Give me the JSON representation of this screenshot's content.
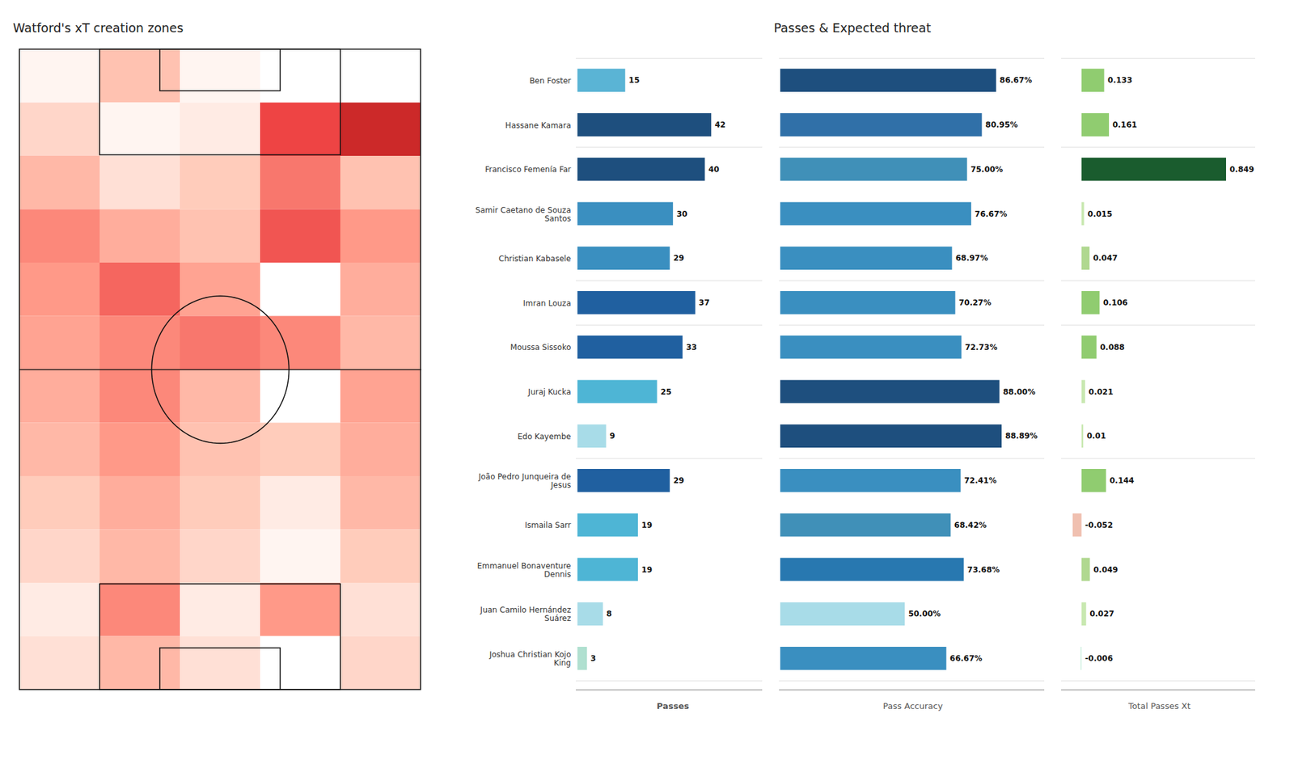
{
  "chart_data": [
    {
      "type": "heatmap",
      "title": "Watford's xT creation zones",
      "values": [
        [
          0.05,
          0.3,
          0.05,
          0.0,
          0.0
        ],
        [
          0.2,
          0.05,
          0.1,
          0.75,
          0.85
        ],
        [
          0.35,
          0.15,
          0.25,
          0.6,
          0.3
        ],
        [
          0.55,
          0.4,
          0.3,
          0.7,
          0.5
        ],
        [
          0.5,
          0.65,
          0.45,
          0.0,
          0.4
        ],
        [
          0.45,
          0.55,
          0.6,
          0.55,
          0.35
        ],
        [
          0.4,
          0.55,
          0.35,
          0.0,
          0.45
        ],
        [
          0.35,
          0.5,
          0.3,
          0.25,
          0.4
        ],
        [
          0.25,
          0.4,
          0.25,
          0.1,
          0.35
        ],
        [
          0.2,
          0.35,
          0.2,
          0.05,
          0.25
        ],
        [
          0.1,
          0.55,
          0.1,
          0.5,
          0.15
        ],
        [
          0.15,
          0.35,
          0.15,
          0.0,
          0.2
        ]
      ],
      "zlim": [
        0,
        1
      ],
      "tick_labels": false
    },
    {
      "type": "bar",
      "orientation": "horizontal",
      "xlabel": "Passes",
      "categories": [
        "Ben Foster",
        "Hassane Kamara",
        "Francisco Femenía Far",
        "Samir Caetano de Souza\nSantos",
        "Christian Kabasele",
        "Imran Louza",
        "Moussa Sissoko",
        "Juraj Kucka",
        "Edo Kayembe",
        "João Pedro Junqueira de\nJesus",
        "Ismaila Sarr",
        "Emmanuel Bonaventure\nDennis",
        "Juan Camilo Hernández\nSuárez",
        "Joshua Christian Kojo\nKing"
      ],
      "values": [
        15,
        42,
        40,
        30,
        29,
        37,
        33,
        25,
        9,
        29,
        19,
        19,
        8,
        3
      ],
      "colors": [
        "#5ab4d5",
        "#1e4f7e",
        "#1e4f7e",
        "#3a8fc0",
        "#3a8fc0",
        "#2060a0",
        "#2060a0",
        "#4eb5d5",
        "#a8dce8",
        "#2060a0",
        "#4eb5d5",
        "#4eb5d5",
        "#a8dce8",
        "#b0e0d0"
      ],
      "xlim": [
        -0.5,
        58
      ],
      "data_labels": true,
      "tick_labels": "y",
      "separators_after": [
        1,
        4,
        5,
        8
      ]
    },
    {
      "type": "bar",
      "orientation": "horizontal",
      "title": "Passes & Expected threat",
      "xlabel": "Pass Accuracy",
      "categories": [
        "Ben Foster",
        "Hassane Kamara",
        "Francisco Femenía Far",
        "Samir Caetano de Souza\nSantos",
        "Christian Kabasele",
        "Imran Louza",
        "Moussa Sissoko",
        "Juraj Kucka",
        "Edo Kayembe",
        "João Pedro Junqueira de\nJesus",
        "Ismaila Sarr",
        "Emmanuel Bonaventure\nDennis",
        "Juan Camilo Hernández\nSuárez",
        "Joshua Christian Kojo\nKing"
      ],
      "values": [
        86.67,
        80.95,
        75.0,
        76.67,
        68.97,
        70.27,
        72.73,
        88.0,
        88.89,
        72.41,
        68.42,
        73.68,
        50.0,
        66.67
      ],
      "value_labels": [
        "86.67%",
        "80.95%",
        "75.00%",
        "76.67%",
        "68.97%",
        "70.27%",
        "72.73%",
        "88.00%",
        "88.89%",
        "72.41%",
        "68.42%",
        "73.68%",
        "50.00%",
        "66.67%"
      ],
      "colors": [
        "#1e4f7e",
        "#3070a8",
        "#4090b8",
        "#3a8fc0",
        "#3a8fc0",
        "#3a8fc0",
        "#3a8fc0",
        "#1e4f7e",
        "#1e4f7e",
        "#3a8fc0",
        "#4090b8",
        "#2878b0",
        "#a8dce8",
        "#3a8fc0"
      ],
      "xlim": [
        -0.5,
        106
      ],
      "data_labels": true,
      "tick_labels": false,
      "separators_after": [
        1,
        4,
        5,
        8
      ]
    },
    {
      "type": "bar",
      "orientation": "horizontal",
      "xlabel": "Total Passes Xt",
      "categories": [
        "Ben Foster",
        "Hassane Kamara",
        "Francisco Femenía Far",
        "Samir Caetano de Souza\nSantos",
        "Christian Kabasele",
        "Imran Louza",
        "Moussa Sissoko",
        "Juraj Kucka",
        "Edo Kayembe",
        "João Pedro Junqueira de\nJesus",
        "Ismaila Sarr",
        "Emmanuel Bonaventure\nDennis",
        "Juan Camilo Hernández\nSuárez",
        "Joshua Christian Kojo\nKing"
      ],
      "values": [
        0.133,
        0.161,
        0.849,
        0.015,
        0.047,
        0.106,
        0.088,
        0.021,
        0.01,
        0.144,
        -0.052,
        0.049,
        0.027,
        -0.006
      ],
      "colors": [
        "#90cc70",
        "#90cc70",
        "#1a5c2e",
        "#c8e8b0",
        "#b0d890",
        "#90cc70",
        "#90cc70",
        "#c8e8b0",
        "#c8e8b0",
        "#90cc70",
        "#f0c0b0",
        "#b0d890",
        "#c8e8b0",
        "#d0f0e0"
      ],
      "xlim": [
        -0.12,
        1.02
      ],
      "data_labels": true,
      "tick_labels": false,
      "separators_after": [
        1,
        4,
        5,
        8
      ]
    }
  ]
}
